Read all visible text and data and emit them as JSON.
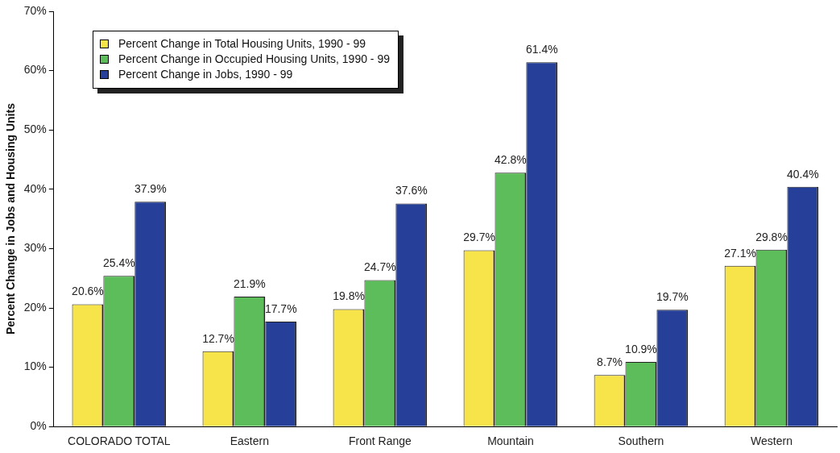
{
  "chart_data": {
    "type": "bar",
    "ylabel": "Percent Change in Jobs and Housing Units",
    "categories": [
      "COLORADO TOTAL",
      "Eastern",
      "Front Range",
      "Mountain",
      "Southern",
      "Western"
    ],
    "series": [
      {
        "name": "Percent Change in Total Housing Units, 1990 - 99",
        "color": "#f7e34a",
        "values": [
          20.6,
          12.7,
          19.8,
          29.7,
          8.7,
          27.1
        ],
        "value_labels": [
          "20.6%",
          "12.7%",
          "19.8%",
          "29.7%",
          "8.7%",
          "27.1%"
        ]
      },
      {
        "name": "Percent Change in Occupied Housing Units, 1990 - 99",
        "color": "#5cbd5a",
        "values": [
          25.4,
          21.9,
          24.7,
          42.8,
          10.9,
          29.8
        ],
        "value_labels": [
          "25.4%",
          "21.9%",
          "24.7%",
          "42.8%",
          "10.9%",
          "29.8%"
        ]
      },
      {
        "name": "Percent Change in Jobs, 1990 - 99",
        "color": "#26409a",
        "values": [
          37.9,
          17.7,
          37.6,
          61.4,
          19.7,
          40.4
        ],
        "value_labels": [
          "37.9%",
          "17.7%",
          "37.6%",
          "61.4%",
          "19.7%",
          "40.4%"
        ]
      }
    ],
    "ylim": [
      0,
      70
    ],
    "yticks": [
      {
        "value": 0,
        "label": "0%"
      },
      {
        "value": 10,
        "label": "10%"
      },
      {
        "value": 20,
        "label": "20%"
      },
      {
        "value": 30,
        "label": "30%"
      },
      {
        "value": 40,
        "label": "40%"
      },
      {
        "value": 50,
        "label": "50%"
      },
      {
        "value": 60,
        "label": "60%"
      },
      {
        "value": 70,
        "label": "70%"
      }
    ],
    "grid": false,
    "legend": "top left"
  }
}
